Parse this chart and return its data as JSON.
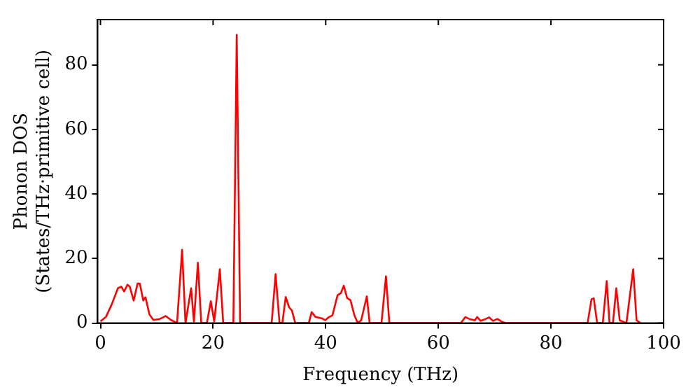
{
  "chart_data": {
    "type": "line",
    "xlabel": "Frequency (THz)",
    "ylabel": "Phonon DOS\n(States/THz·primitive cell)",
    "xlim": [
      -0.5,
      100
    ],
    "xticks": [
      0,
      20,
      40,
      60,
      80,
      100
    ],
    "ylim": [
      0,
      94
    ],
    "yticks": [
      0,
      20,
      40,
      60,
      80
    ],
    "grid": false,
    "legend": false,
    "marker": "none",
    "line_style": "solid",
    "series": [
      {
        "color": "#ff0000",
        "x": [
          0,
          1,
          2,
          3.1,
          3.7,
          4.2,
          4.8,
          5.2,
          5.9,
          6.6,
          7.0,
          7.6,
          8.0,
          8.7,
          9.4,
          10.4,
          11.6,
          12.5,
          13.6,
          14.5,
          15.1,
          16.1,
          16.6,
          17.3,
          17.9,
          18.9,
          19.6,
          20.2,
          21.2,
          21.8,
          23.6,
          24.2,
          24.8,
          30.4,
          31.1,
          31.8,
          32.3,
          32.9,
          33.5,
          34.0,
          34.6,
          37.0,
          37.5,
          38.2,
          39.3,
          39.9,
          40.6,
          41.2,
          42.1,
          42.7,
          43.2,
          43.8,
          44.4,
          45.1,
          45.7,
          46.3,
          47.3,
          47.8,
          49.9,
          50.7,
          51.3,
          64.0,
          64.8,
          65.6,
          66.5,
          66.9,
          67.5,
          68.3,
          69.0,
          69.7,
          70.5,
          71.3,
          72.0,
          86.5,
          87.2,
          87.6,
          88.2,
          89.2,
          89.9,
          90.4,
          91.0,
          91.6,
          92.2,
          93.4,
          94.6,
          95.2,
          95.9
        ],
        "values": [
          0.5,
          2,
          5.8,
          10.8,
          11.3,
          9.8,
          11.9,
          11.3,
          7,
          12.3,
          12.2,
          7,
          8,
          2.7,
          1,
          1.2,
          2.2,
          1,
          0,
          22.7,
          0,
          10.8,
          0.5,
          18.7,
          0,
          0,
          6.8,
          0.5,
          16.7,
          0,
          0,
          89.3,
          0,
          0,
          15.2,
          0,
          0,
          8.1,
          4.9,
          3.9,
          0,
          0,
          3.4,
          1.9,
          1.5,
          0.9,
          1.9,
          2.4,
          8.6,
          9.3,
          11.6,
          7.8,
          7.1,
          2.4,
          0,
          0.9,
          8.3,
          0,
          0,
          14.5,
          0,
          0,
          1.9,
          1.2,
          0.9,
          1.9,
          0.7,
          1.2,
          1.8,
          0.7,
          1.3,
          0.4,
          0,
          0,
          7.4,
          7.7,
          0,
          0,
          13,
          0,
          0,
          10.8,
          0.9,
          0,
          16.7,
          0.9,
          0
        ]
      }
    ]
  }
}
